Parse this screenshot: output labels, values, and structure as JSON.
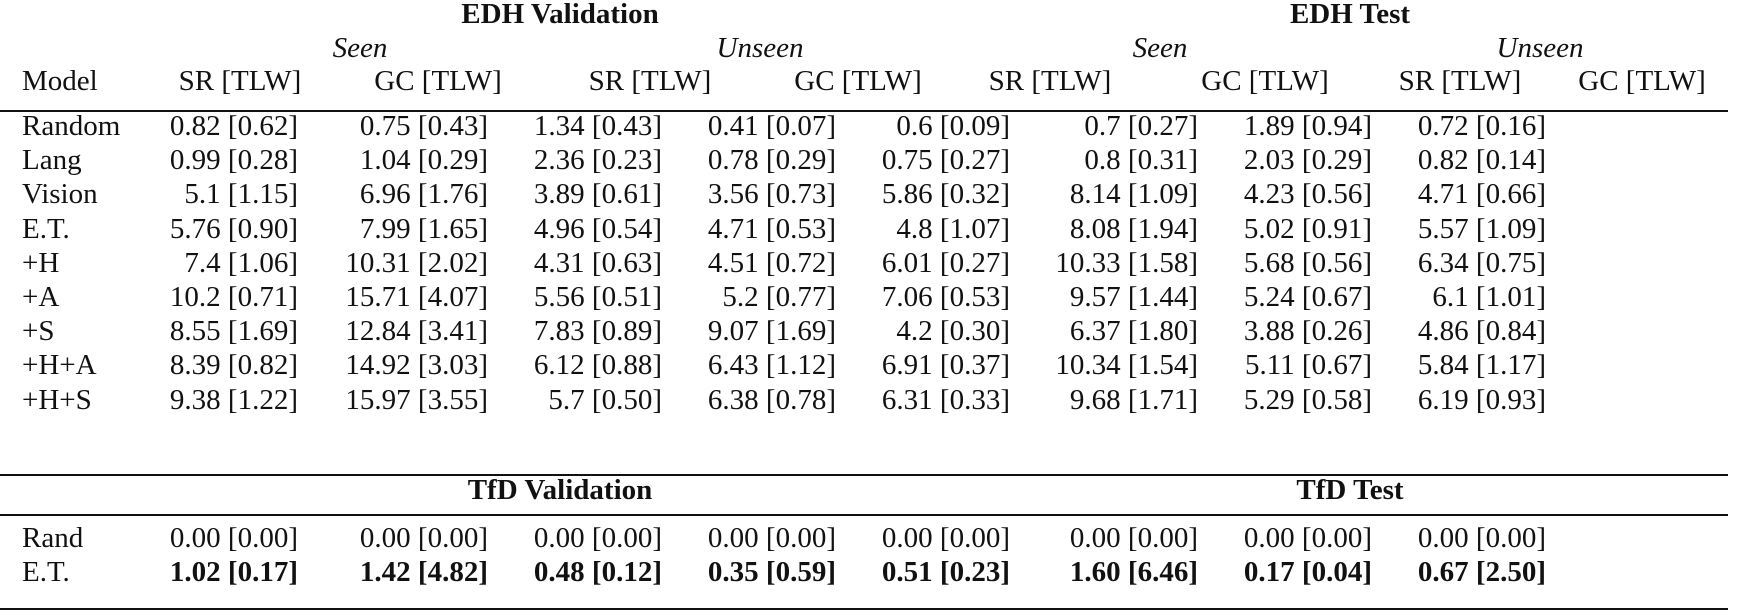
{
  "edh_header": {
    "validation": "EDH Validation",
    "test": "EDH Test"
  },
  "subheaders": {
    "seen_1": "Seen",
    "unseen_1": "Unseen",
    "seen_2": "Seen",
    "unseen_2": "Unseen"
  },
  "columns": [
    "Model",
    "SR [TLW]",
    "GC [TLW]",
    "SR [TLW]",
    "GC [TLW]",
    "SR [TLW]",
    "GC [TLW]",
    "SR [TLW]",
    "GC [TLW]"
  ],
  "edh_rows": [
    {
      "model": "Random",
      "cells": [
        "0.82 [0.62]",
        "0.75 [0.43]",
        "1.34 [0.43]",
        "0.41 [0.07]",
        "0.6 [0.09]",
        "0.7 [0.27]",
        "1.89 [0.94]",
        "0.72 [0.16]"
      ]
    },
    {
      "model": "Lang",
      "cells": [
        "0.99 [0.28]",
        "1.04 [0.29]",
        "2.36 [0.23]",
        "0.78 [0.29]",
        "0.75 [0.27]",
        "0.8 [0.31]",
        "2.03 [0.29]",
        "0.82 [0.14]"
      ]
    },
    {
      "model": "Vision",
      "cells": [
        "5.1 [1.15]",
        "6.96 [1.76]",
        "3.89 [0.61]",
        "3.56 [0.73]",
        "5.86 [0.32]",
        "8.14 [1.09]",
        "4.23 [0.56]",
        "4.71 [0.66]"
      ]
    },
    {
      "model": "E.T.",
      "cells": [
        "5.76 [0.90]",
        "7.99 [1.65]",
        "4.96 [0.54]",
        "4.71 [0.53]",
        "4.8 [1.07]",
        "8.08 [1.94]",
        "5.02 [0.91]",
        "5.57 [1.09]"
      ]
    },
    {
      "model": "+H",
      "cells": [
        "7.4 [1.06]",
        "10.31 [2.02]",
        "4.31 [0.63]",
        "4.51 [0.72]",
        "6.01 [0.27]",
        "10.33 [1.58]",
        "5.68 [0.56]",
        "6.34 [0.75]"
      ]
    },
    {
      "model": "+A",
      "cells": [
        "10.2 [0.71]",
        "15.71 [4.07]",
        "5.56 [0.51]",
        "5.2 [0.77]",
        "7.06 [0.53]",
        "9.57 [1.44]",
        "5.24 [0.67]",
        "6.1 [1.01]"
      ]
    },
    {
      "model": "+S",
      "cells": [
        "8.55 [1.69]",
        "12.84 [3.41]",
        "7.83 [0.89]",
        "9.07 [1.69]",
        "4.2 [0.30]",
        "6.37 [1.80]",
        "3.88 [0.26]",
        "4.86 [0.84]"
      ]
    },
    {
      "model": "+H+A",
      "cells": [
        "8.39 [0.82]",
        "14.92 [3.03]",
        "6.12 [0.88]",
        "6.43 [1.12]",
        "6.91 [0.37]",
        "10.34 [1.54]",
        "5.11 [0.67]",
        "5.84 [1.17]"
      ]
    },
    {
      "model": "+H+S",
      "cells": [
        "9.38 [1.22]",
        "15.97 [3.55]",
        "5.7 [0.50]",
        "6.38 [0.78]",
        "6.31 [0.33]",
        "9.68 [1.71]",
        "5.29 [0.58]",
        "6.19 [0.93]"
      ]
    }
  ],
  "tfd_header": {
    "validation": "TfD Validation",
    "test": "TfD Test"
  },
  "tfd_rows": [
    {
      "model": "Rand",
      "bold": false,
      "cells": [
        "0.00 [0.00]",
        "0.00 [0.00]",
        "0.00 [0.00]",
        "0.00 [0.00]",
        "0.00 [0.00]",
        "0.00 [0.00]",
        "0.00 [0.00]",
        "0.00 [0.00]"
      ]
    },
    {
      "model": "E.T.",
      "bold": true,
      "cells": [
        "1.02 [0.17]",
        "1.42 [4.82]",
        "0.48 [0.12]",
        "0.35 [0.59]",
        "0.51 [0.23]",
        "1.60 [6.46]",
        "0.17 [0.04]",
        "0.67 [2.50]"
      ]
    }
  ]
}
